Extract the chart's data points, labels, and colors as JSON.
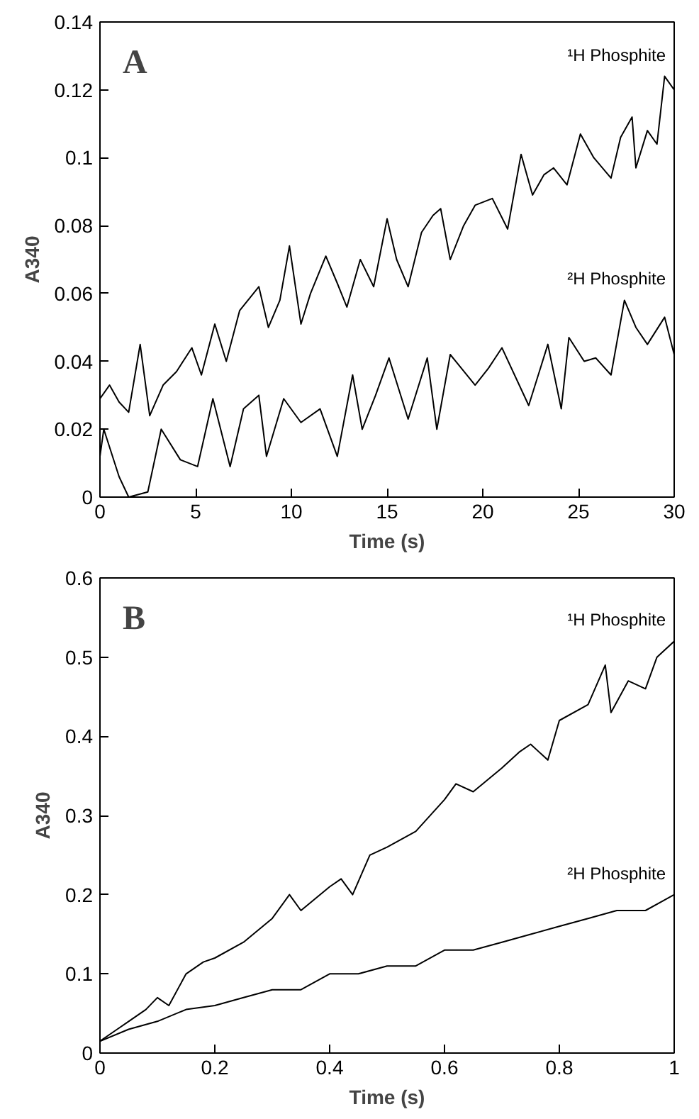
{
  "chart_data": [
    {
      "type": "line",
      "xlabel": "Time (s)",
      "ylabel": "A340",
      "annotations": [
        "A"
      ],
      "xlim": [
        0,
        30
      ],
      "ylim": [
        0,
        0.14
      ],
      "xticks": [
        0,
        5,
        10,
        15,
        20,
        25,
        30
      ],
      "yticks": [
        0,
        0.02,
        0.04,
        0.06,
        0.08,
        0.1,
        0.12,
        0.14
      ],
      "grid": false,
      "legend": false,
      "marker": "none",
      "line_style": "solid",
      "series": [
        {
          "name": "¹H Phosphite",
          "color": "#000000",
          "x": [
            0,
            0.5,
            1,
            1.5,
            2.1,
            2.6,
            3.3,
            4,
            4.8,
            5.3,
            6,
            6.6,
            7.3,
            8.3,
            8.8,
            9.4,
            9.9,
            10.5,
            11,
            11.8,
            12.4,
            12.9,
            13.6,
            14.3,
            15,
            15.5,
            16.1,
            16.8,
            17.4,
            17.8,
            18.3,
            19,
            19.6,
            20.5,
            21.3,
            22,
            22.6,
            23.2,
            23.7,
            24.4,
            25.1,
            25.8,
            26.7,
            27.2,
            27.8,
            28,
            28.6,
            29.1,
            29.5,
            30
          ],
          "values": [
            0.029,
            0.033,
            0.028,
            0.025,
            0.045,
            0.024,
            0.033,
            0.037,
            0.044,
            0.036,
            0.051,
            0.04,
            0.055,
            0.062,
            0.05,
            0.058,
            0.074,
            0.051,
            0.06,
            0.071,
            0.063,
            0.056,
            0.07,
            0.062,
            0.082,
            0.07,
            0.062,
            0.078,
            0.083,
            0.085,
            0.07,
            0.08,
            0.086,
            0.088,
            0.079,
            0.101,
            0.089,
            0.095,
            0.097,
            0.092,
            0.107,
            0.1,
            0.094,
            0.106,
            0.112,
            0.097,
            0.108,
            0.104,
            0.124,
            0.12
          ]
        },
        {
          "name": "²H Phosphite",
          "color": "#000000",
          "x": [
            0,
            0.2,
            1,
            1.5,
            2.5,
            3.2,
            4.2,
            5.1,
            5.9,
            6.8,
            7.5,
            8.3,
            8.7,
            9.6,
            10.5,
            11.5,
            12.4,
            13.2,
            13.7,
            14.4,
            15.1,
            16.1,
            17.1,
            17.6,
            18.3,
            19.6,
            20.3,
            21,
            22.4,
            23.4,
            24.1,
            24.5,
            25.3,
            25.9,
            26.7,
            27.4,
            28,
            28.6,
            29.5,
            30
          ],
          "values": [
            0.012,
            0.02,
            0.006,
            0.0,
            0.0015,
            0.02,
            0.011,
            0.009,
            0.029,
            0.009,
            0.026,
            0.03,
            0.012,
            0.029,
            0.022,
            0.026,
            0.012,
            0.036,
            0.02,
            0.03,
            0.041,
            0.023,
            0.041,
            0.02,
            0.042,
            0.033,
            0.038,
            0.044,
            0.027,
            0.045,
            0.026,
            0.047,
            0.04,
            0.041,
            0.036,
            0.058,
            0.05,
            0.045,
            0.053,
            0.042
          ]
        }
      ]
    },
    {
      "type": "line",
      "xlabel": "Time (s)",
      "ylabel": "A340",
      "annotations": [
        "B"
      ],
      "xlim": [
        0,
        1
      ],
      "ylim": [
        0,
        0.6
      ],
      "xticks": [
        0,
        0.2,
        0.4,
        0.6,
        0.8,
        1
      ],
      "yticks": [
        0,
        0.1,
        0.2,
        0.3,
        0.4,
        0.5,
        0.6
      ],
      "grid": false,
      "legend": false,
      "marker": "none",
      "line_style": "solid",
      "series": [
        {
          "name": "¹H Phosphite",
          "color": "#000000",
          "x": [
            0,
            0.03,
            0.05,
            0.08,
            0.1,
            0.12,
            0.15,
            0.18,
            0.2,
            0.25,
            0.3,
            0.33,
            0.35,
            0.4,
            0.42,
            0.44,
            0.47,
            0.5,
            0.55,
            0.6,
            0.62,
            0.65,
            0.7,
            0.73,
            0.75,
            0.78,
            0.8,
            0.85,
            0.88,
            0.89,
            0.92,
            0.95,
            0.97,
            1
          ],
          "values": [
            0.015,
            0.03,
            0.04,
            0.055,
            0.07,
            0.06,
            0.1,
            0.115,
            0.12,
            0.14,
            0.17,
            0.2,
            0.18,
            0.21,
            0.22,
            0.2,
            0.25,
            0.26,
            0.28,
            0.32,
            0.34,
            0.33,
            0.36,
            0.38,
            0.39,
            0.37,
            0.42,
            0.44,
            0.49,
            0.43,
            0.47,
            0.46,
            0.5,
            0.52
          ]
        },
        {
          "name": "²H Phosphite",
          "color": "#000000",
          "x": [
            0,
            0.05,
            0.1,
            0.15,
            0.2,
            0.25,
            0.3,
            0.35,
            0.4,
            0.45,
            0.5,
            0.55,
            0.6,
            0.65,
            0.7,
            0.75,
            0.8,
            0.85,
            0.9,
            0.95,
            1
          ],
          "values": [
            0.015,
            0.03,
            0.04,
            0.055,
            0.06,
            0.07,
            0.08,
            0.08,
            0.1,
            0.1,
            0.11,
            0.11,
            0.13,
            0.13,
            0.14,
            0.15,
            0.16,
            0.17,
            0.18,
            0.18,
            0.2
          ]
        }
      ]
    }
  ]
}
